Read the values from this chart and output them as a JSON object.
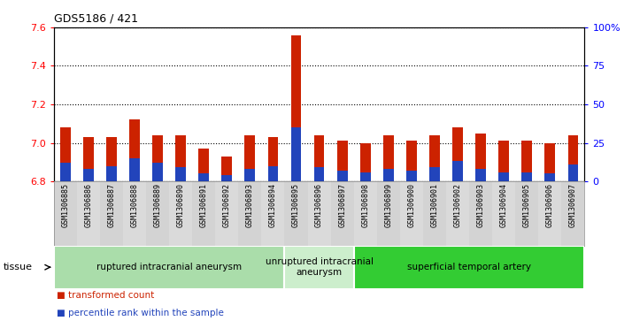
{
  "title": "GDS5186 / 421",
  "samples": [
    "GSM1306885",
    "GSM1306886",
    "GSM1306887",
    "GSM1306888",
    "GSM1306889",
    "GSM1306890",
    "GSM1306891",
    "GSM1306892",
    "GSM1306893",
    "GSM1306894",
    "GSM1306895",
    "GSM1306896",
    "GSM1306897",
    "GSM1306898",
    "GSM1306899",
    "GSM1306900",
    "GSM1306901",
    "GSM1306902",
    "GSM1306903",
    "GSM1306904",
    "GSM1306905",
    "GSM1306906",
    "GSM1306907"
  ],
  "red_values": [
    7.08,
    7.03,
    7.03,
    7.12,
    7.04,
    7.04,
    6.97,
    6.93,
    7.04,
    7.03,
    7.56,
    7.04,
    7.01,
    7.0,
    7.04,
    7.01,
    7.04,
    7.08,
    7.05,
    7.01,
    7.01,
    7.0,
    7.04
  ],
  "blue_percentiles": [
    12,
    8,
    10,
    15,
    12,
    9,
    5,
    4,
    8,
    10,
    35,
    9,
    7,
    6,
    8,
    7,
    9,
    13,
    8,
    6,
    6,
    5,
    11
  ],
  "baseline": 6.8,
  "ylim_left": [
    6.8,
    7.6
  ],
  "ylim_right": [
    0,
    100
  ],
  "yticks_left": [
    6.8,
    7.0,
    7.2,
    7.4,
    7.6
  ],
  "yticks_right": [
    0,
    25,
    50,
    75,
    100
  ],
  "ytick_labels_right": [
    "0",
    "25",
    "50",
    "75",
    "100%"
  ],
  "bar_color": "#cc2200",
  "blue_color": "#2244bb",
  "bar_width": 0.45,
  "groups": [
    {
      "label": "ruptured intracranial aneurysm",
      "start": 0,
      "end": 9,
      "color": "#aaddaa"
    },
    {
      "label": "unruptured intracranial\naneurysm",
      "start": 10,
      "end": 12,
      "color": "#cceecc"
    },
    {
      "label": "superficial temporal artery",
      "start": 13,
      "end": 22,
      "color": "#44cc44"
    }
  ],
  "tissue_label": "tissue",
  "legend_red": "transformed count",
  "legend_blue": "percentile rank within the sample",
  "xtick_bg": "#d8d8d8",
  "plot_bg": "#ffffff"
}
